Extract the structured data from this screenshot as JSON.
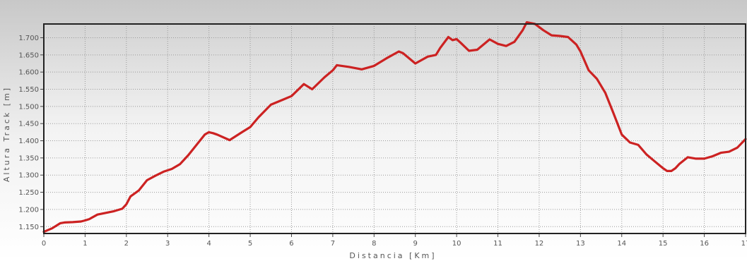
{
  "chart_data": {
    "type": "line",
    "title": "",
    "xlabel": "Distancia [Km]",
    "ylabel": "Altura Track [m]",
    "xlim": [
      0,
      17
    ],
    "ylim": [
      1130,
      1740
    ],
    "x_ticks": [
      {
        "value": 0,
        "label": "0"
      },
      {
        "value": 1,
        "label": "1"
      },
      {
        "value": 2,
        "label": "2"
      },
      {
        "value": 3,
        "label": "3"
      },
      {
        "value": 4,
        "label": "4"
      },
      {
        "value": 5,
        "label": "5"
      },
      {
        "value": 6,
        "label": "6"
      },
      {
        "value": 7,
        "label": "7"
      },
      {
        "value": 8,
        "label": "8"
      },
      {
        "value": 9,
        "label": "9"
      },
      {
        "value": 10,
        "label": "10"
      },
      {
        "value": 11,
        "label": "11"
      },
      {
        "value": 12,
        "label": "12"
      },
      {
        "value": 13,
        "label": "13"
      },
      {
        "value": 14,
        "label": "14"
      },
      {
        "value": 15,
        "label": "15"
      },
      {
        "value": 16,
        "label": "16"
      },
      {
        "value": 17,
        "label": "17"
      }
    ],
    "y_ticks": [
      {
        "value": 1150,
        "label": "1.150"
      },
      {
        "value": 1200,
        "label": "1.200"
      },
      {
        "value": 1250,
        "label": "1.250"
      },
      {
        "value": 1300,
        "label": "1.300"
      },
      {
        "value": 1350,
        "label": "1.350"
      },
      {
        "value": 1400,
        "label": "1.400"
      },
      {
        "value": 1450,
        "label": "1.450"
      },
      {
        "value": 1500,
        "label": "1.500"
      },
      {
        "value": 1550,
        "label": "1.550"
      },
      {
        "value": 1600,
        "label": "1.600"
      },
      {
        "value": 1650,
        "label": "1.650"
      },
      {
        "value": 1700,
        "label": "1.700"
      }
    ],
    "grid": true,
    "legend": "none",
    "series": [
      {
        "color": "#cc2222",
        "x": [
          0,
          0.2,
          0.4,
          0.5,
          0.7,
          0.9,
          1.0,
          1.1,
          1.3,
          1.5,
          1.7,
          1.9,
          2.0,
          2.1,
          2.3,
          2.5,
          2.7,
          2.9,
          3.1,
          3.3,
          3.5,
          3.7,
          3.9,
          4.0,
          4.1,
          4.2,
          4.5,
          4.8,
          5.0,
          5.2,
          5.5,
          5.8,
          6.0,
          6.3,
          6.5,
          6.8,
          7.0,
          7.1,
          7.4,
          7.7,
          8.0,
          8.3,
          8.6,
          8.7,
          9.0,
          9.3,
          9.5,
          9.6,
          9.8,
          9.9,
          10.0,
          10.1,
          10.3,
          10.5,
          10.8,
          11.0,
          11.2,
          11.4,
          11.6,
          11.7,
          11.9,
          12.1,
          12.3,
          12.5,
          12.7,
          12.9,
          13.0,
          13.2,
          13.4,
          13.6,
          13.8,
          14.0,
          14.2,
          14.4,
          14.6,
          14.8,
          15.0,
          15.1,
          15.2,
          15.3,
          15.4,
          15.6,
          15.8,
          16.0,
          16.2,
          16.4,
          16.6,
          16.8,
          17.0
        ],
        "y": [
          1135,
          1145,
          1160,
          1162,
          1163,
          1165,
          1168,
          1172,
          1185,
          1190,
          1195,
          1202,
          1215,
          1238,
          1255,
          1285,
          1298,
          1310,
          1318,
          1332,
          1358,
          1388,
          1418,
          1425,
          1422,
          1418,
          1402,
          1425,
          1440,
          1468,
          1505,
          1520,
          1530,
          1565,
          1550,
          1585,
          1605,
          1620,
          1615,
          1608,
          1618,
          1640,
          1660,
          1655,
          1625,
          1645,
          1650,
          1670,
          1702,
          1693,
          1696,
          1685,
          1662,
          1665,
          1695,
          1682,
          1676,
          1688,
          1722,
          1745,
          1740,
          1722,
          1707,
          1705,
          1702,
          1680,
          1660,
          1605,
          1580,
          1540,
          1480,
          1418,
          1395,
          1388,
          1360,
          1340,
          1320,
          1312,
          1312,
          1320,
          1333,
          1352,
          1348,
          1348,
          1355,
          1365,
          1368,
          1380,
          1405
        ]
      }
    ]
  }
}
